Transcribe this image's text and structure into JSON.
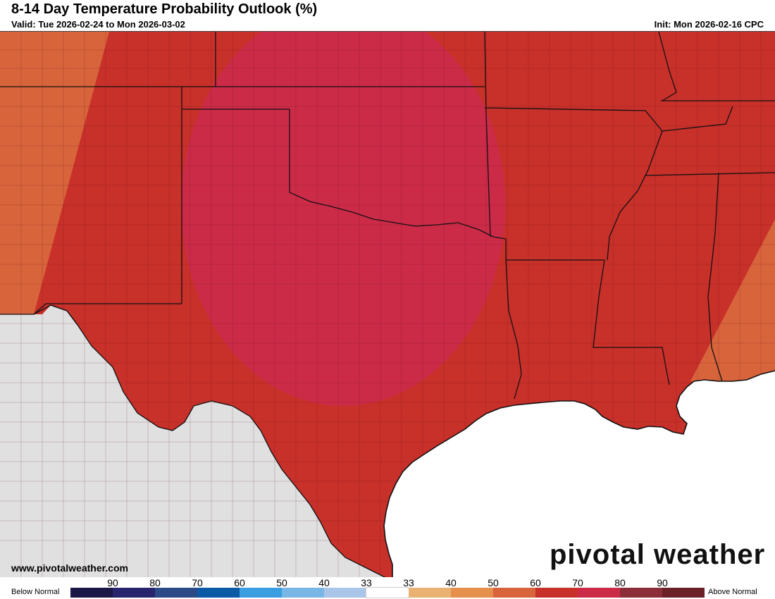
{
  "header": {
    "title": "8-14 Day Temperature Probability Outlook (%)",
    "valid": "Valid: Tue 2026-02-24 to Mon 2026-03-02",
    "init": "Init: Mon 2026-02-16 CPC"
  },
  "footer": {
    "website": "www.pivotalweather.com",
    "brand": "pivotal weather"
  },
  "legend": {
    "below_label": "Below Normal",
    "above_label": "Above Normal",
    "ticks": [
      "90",
      "80",
      "70",
      "60",
      "50",
      "40",
      "33",
      "33",
      "40",
      "50",
      "60",
      "70",
      "80",
      "90"
    ],
    "colors": [
      "#1b1848",
      "#28256e",
      "#2c4a86",
      "#0a5aa6",
      "#3a9ee0",
      "#78b6e6",
      "#a9c6e8",
      "#ffffff",
      "#e9b272",
      "#e6904d",
      "#d8643c",
      "#c8302a",
      "#cc2b48",
      "#8c2e38",
      "#6a2228"
    ]
  },
  "map_colors": {
    "base_70": "#c8302a",
    "core_80": "#cc2b48",
    "edge_60": "#d8643c",
    "no_data": "#e0e0e0",
    "water": "#ffffff"
  },
  "map_data": {
    "categories": [
      "Above Normal 80%",
      "Above Normal 70%",
      "Above Normal 60%"
    ],
    "notes": ""
  }
}
